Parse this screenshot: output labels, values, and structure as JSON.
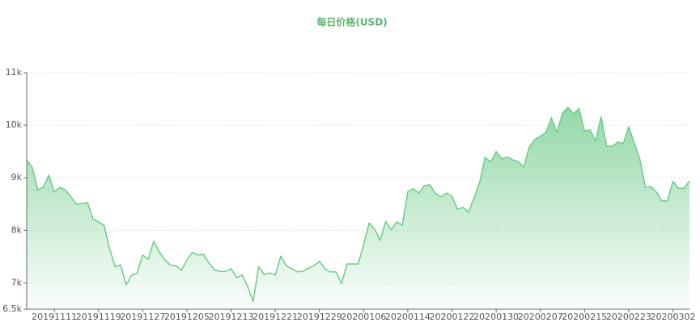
{
  "chart_data": {
    "type": "area",
    "title": "每日价格(USD)",
    "color": "#6fcb8b",
    "grid": true,
    "categories": [
      null,
      null,
      null,
      null,
      null,
      "20191111",
      null,
      null,
      null,
      null,
      null,
      null,
      null,
      "20191119",
      null,
      null,
      null,
      null,
      null,
      null,
      null,
      "20191127",
      null,
      null,
      null,
      null,
      null,
      null,
      null,
      "20191205",
      null,
      null,
      null,
      null,
      null,
      null,
      null,
      "20191213",
      null,
      null,
      null,
      null,
      null,
      null,
      null,
      "20191221",
      null,
      null,
      null,
      null,
      null,
      null,
      null,
      "20191229",
      null,
      null,
      null,
      null,
      null,
      null,
      null,
      "20200106",
      null,
      null,
      null,
      null,
      null,
      null,
      null,
      "20200114",
      null,
      null,
      null,
      null,
      null,
      null,
      null,
      "20200122",
      null,
      null,
      null,
      null,
      null,
      null,
      null,
      "20200130",
      null,
      null,
      null,
      null,
      null,
      null,
      null,
      "20200207",
      null,
      null,
      null,
      null,
      null,
      null,
      null,
      "20200215",
      null,
      null,
      null,
      null,
      null,
      null,
      null,
      "20200223",
      null,
      null,
      null,
      null,
      null,
      null,
      null,
      "20200302",
      null,
      null,
      null
    ],
    "values": [
      9340,
      9200,
      8770,
      8820,
      9050,
      8730,
      8820,
      8770,
      8640,
      8500,
      8510,
      8530,
      8220,
      8160,
      8100,
      7650,
      7310,
      7340,
      6960,
      7150,
      7190,
      7530,
      7450,
      7790,
      7590,
      7440,
      7340,
      7330,
      7240,
      7440,
      7580,
      7530,
      7540,
      7380,
      7250,
      7220,
      7220,
      7270,
      7100,
      7150,
      6930,
      6650,
      7310,
      7160,
      7190,
      7150,
      7510,
      7330,
      7270,
      7210,
      7220,
      7280,
      7330,
      7410,
      7270,
      7210,
      7210,
      6990,
      7360,
      7360,
      7360,
      7730,
      8140,
      8020,
      7810,
      8170,
      8010,
      8160,
      8100,
      8740,
      8790,
      8710,
      8850,
      8870,
      8700,
      8640,
      8710,
      8650,
      8400,
      8440,
      8340,
      8620,
      8910,
      9390,
      9300,
      9500,
      9360,
      9400,
      9340,
      9310,
      9200,
      9590,
      9730,
      9790,
      9860,
      10140,
      9860,
      10230,
      10340,
      10220,
      10320,
      9890,
      9910,
      9700,
      10160,
      9600,
      9600,
      9680,
      9650,
      9970,
      9660,
      9360,
      8820,
      8830,
      8730,
      8560,
      8560,
      8930,
      8800,
      8800,
      8940
    ],
    "ylim": [
      6500,
      11000
    ],
    "yticks": [
      {
        "value": 6500,
        "label": "6.5k"
      },
      {
        "value": 7000,
        "label": "7k"
      },
      {
        "value": 8000,
        "label": "8k"
      },
      {
        "value": 9000,
        "label": "9k"
      },
      {
        "value": 10000,
        "label": "10k"
      },
      {
        "value": 11000,
        "label": "11k"
      }
    ]
  }
}
